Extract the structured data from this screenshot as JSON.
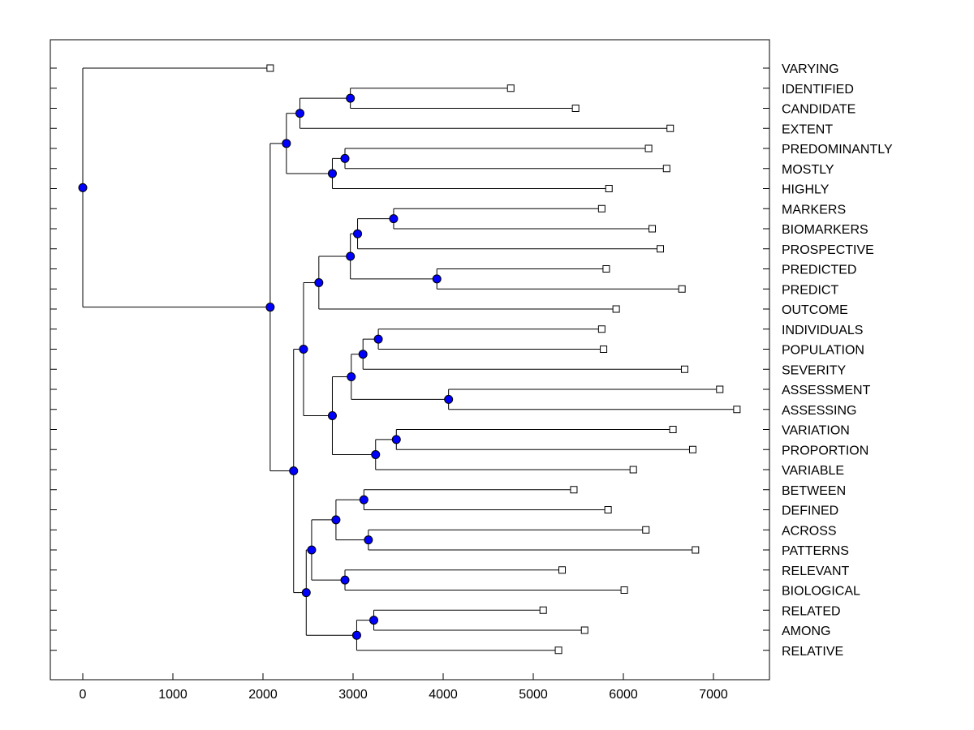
{
  "chart_data": {
    "type": "dendrogram",
    "title": "",
    "xlabel": "",
    "ylabel": "",
    "xlim": [
      -350,
      7600
    ],
    "x_ticks": [
      0,
      1000,
      2000,
      3000,
      4000,
      5000,
      6000,
      7000
    ],
    "x_tick_labels": [
      "0",
      "1000",
      "2000",
      "3000",
      "4000",
      "5000",
      "6000",
      "7000"
    ],
    "colors": {
      "node": "#0000ff",
      "line": "#000000",
      "leaf_fill": "#ffffff"
    },
    "leaves": [
      {
        "label": "VARYING",
        "x": 2080
      },
      {
        "label": "IDENTIFIED",
        "x": 4750
      },
      {
        "label": "CANDIDATE",
        "x": 5470
      },
      {
        "label": "EXTENT",
        "x": 6520
      },
      {
        "label": "PREDOMINANTLY",
        "x": 6280
      },
      {
        "label": "MOSTLY",
        "x": 6480
      },
      {
        "label": "HIGHLY",
        "x": 5840
      },
      {
        "label": "MARKERS",
        "x": 5760
      },
      {
        "label": "BIOMARKERS",
        "x": 6320
      },
      {
        "label": "PROSPECTIVE",
        "x": 6410
      },
      {
        "label": "PREDICTED",
        "x": 5810
      },
      {
        "label": "PREDICT",
        "x": 6650
      },
      {
        "label": "OUTCOME",
        "x": 5920
      },
      {
        "label": "INDIVIDUALS",
        "x": 5760
      },
      {
        "label": "POPULATION",
        "x": 5780
      },
      {
        "label": "SEVERITY",
        "x": 6680
      },
      {
        "label": "ASSESSMENT",
        "x": 7070
      },
      {
        "label": "ASSESSING",
        "x": 7260
      },
      {
        "label": "VARIATION",
        "x": 6550
      },
      {
        "label": "PROPORTION",
        "x": 6770
      },
      {
        "label": "VARIABLE",
        "x": 6110
      },
      {
        "label": "BETWEEN",
        "x": 5450
      },
      {
        "label": "DEFINED",
        "x": 5830
      },
      {
        "label": "ACROSS",
        "x": 6250
      },
      {
        "label": "PATTERNS",
        "x": 6800
      },
      {
        "label": "RELEVANT",
        "x": 5320
      },
      {
        "label": "BIOLOGICAL",
        "x": 6010
      },
      {
        "label": "RELATED",
        "x": 5110
      },
      {
        "label": "AMONG",
        "x": 5570
      },
      {
        "label": "RELATIVE",
        "x": 5280
      }
    ],
    "tree": {
      "x": 0,
      "children": [
        {
          "leaf": 0
        },
        {
          "x": 2080,
          "children": [
            {
              "x": 2260,
              "children": [
                {
                  "x": 2410,
                  "children": [
                    {
                      "x": 2970,
                      "children": [
                        {
                          "leaf": 1
                        },
                        {
                          "leaf": 2
                        }
                      ]
                    },
                    {
                      "leaf": 3
                    }
                  ]
                },
                {
                  "x": 2770,
                  "children": [
                    {
                      "x": 2910,
                      "children": [
                        {
                          "leaf": 4
                        },
                        {
                          "leaf": 5
                        }
                      ]
                    },
                    {
                      "leaf": 6
                    }
                  ]
                }
              ]
            },
            {
              "x": 2340,
              "children": [
                {
                  "x": 2450,
                  "children": [
                    {
                      "x": 2620,
                      "children": [
                        {
                          "x": 2970,
                          "children": [
                            {
                              "x": 3050,
                              "children": [
                                {
                                  "x": 3450,
                                  "children": [
                                    {
                                      "leaf": 7
                                    },
                                    {
                                      "leaf": 8
                                    }
                                  ]
                                },
                                {
                                  "leaf": 9
                                }
                              ]
                            },
                            {
                              "x": 3930,
                              "children": [
                                {
                                  "leaf": 10
                                },
                                {
                                  "leaf": 11
                                }
                              ]
                            }
                          ]
                        },
                        {
                          "leaf": 12
                        }
                      ]
                    },
                    {
                      "x": 2770,
                      "children": [
                        {
                          "x": 2980,
                          "children": [
                            {
                              "x": 3110,
                              "children": [
                                {
                                  "x": 3280,
                                  "children": [
                                    {
                                      "leaf": 13
                                    },
                                    {
                                      "leaf": 14
                                    }
                                  ]
                                },
                                {
                                  "leaf": 15
                                }
                              ]
                            },
                            {
                              "x": 4060,
                              "children": [
                                {
                                  "leaf": 16
                                },
                                {
                                  "leaf": 17
                                }
                              ]
                            }
                          ]
                        },
                        {
                          "x": 3250,
                          "children": [
                            {
                              "x": 3480,
                              "children": [
                                {
                                  "leaf": 18
                                },
                                {
                                  "leaf": 19
                                }
                              ]
                            },
                            {
                              "leaf": 20
                            }
                          ]
                        }
                      ]
                    }
                  ]
                },
                {
                  "x": 2480,
                  "children": [
                    {
                      "x": 2540,
                      "children": [
                        {
                          "x": 2810,
                          "children": [
                            {
                              "x": 3120,
                              "children": [
                                {
                                  "leaf": 21
                                },
                                {
                                  "leaf": 22
                                }
                              ]
                            },
                            {
                              "x": 3170,
                              "children": [
                                {
                                  "leaf": 23
                                },
                                {
                                  "leaf": 24
                                }
                              ]
                            }
                          ]
                        },
                        {
                          "x": 2910,
                          "children": [
                            {
                              "leaf": 25
                            },
                            {
                              "leaf": 26
                            }
                          ]
                        }
                      ]
                    },
                    {
                      "x": 3040,
                      "children": [
                        {
                          "x": 3230,
                          "children": [
                            {
                              "leaf": 27
                            },
                            {
                              "leaf": 28
                            }
                          ]
                        },
                        {
                          "leaf": 29
                        }
                      ]
                    }
                  ]
                }
              ]
            }
          ]
        }
      ]
    }
  }
}
